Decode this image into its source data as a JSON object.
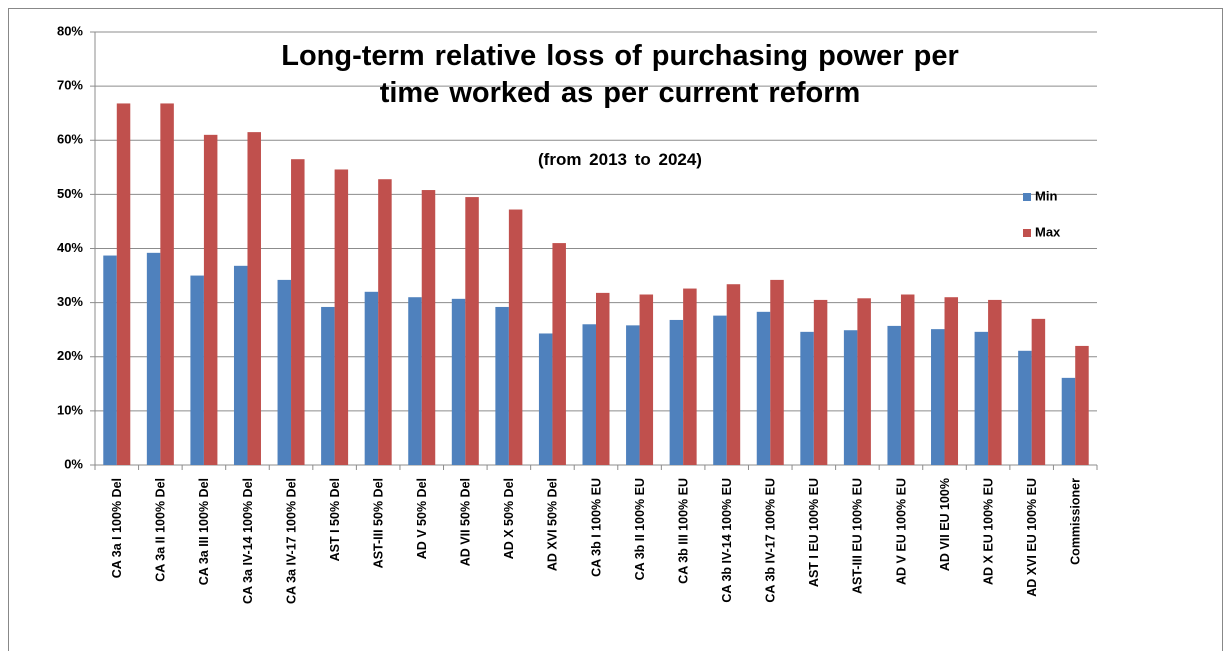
{
  "chart_data": {
    "type": "bar",
    "title": "Long-term relative loss of purchasing power per time worked as per current reform",
    "subtitle": "(from 2013 to 2024)",
    "categories": [
      "CA 3a I 100% Del",
      "CA 3a II 100% Del",
      "CA 3a III 100% Del",
      "CA 3a IV-14 100% Del",
      "CA 3a IV-17 100% Del",
      "AST I 50% Del",
      "AST-III 50% Del",
      "AD V 50% Del",
      "AD VII 50% Del",
      "AD X 50% Del",
      "AD XVI 50% Del",
      "CA 3b I 100% EU",
      "CA 3b II 100% EU",
      "CA 3b III 100% EU",
      "CA 3b IV-14 100% EU",
      "CA 3b IV-17 100% EU",
      "AST I EU 100% EU",
      "AST-III EU 100% EU",
      "AD V EU 100% EU",
      "AD VII EU 100%",
      "AD X EU 100% EU",
      "AD XVI EU 100% EU",
      "Commissioner"
    ],
    "series": [
      {
        "name": "Min",
        "color": "#4f81bd",
        "values": [
          38.7,
          39.2,
          35,
          36.8,
          34.2,
          29.2,
          32,
          31,
          30.7,
          29.2,
          24.3,
          26,
          25.8,
          26.8,
          27.6,
          28.3,
          24.6,
          24.9,
          25.7,
          25.1,
          24.6,
          21.1,
          16.1
        ]
      },
      {
        "name": "Max",
        "color": "#c0504d",
        "values": [
          66.8,
          66.8,
          61,
          61.5,
          56.5,
          54.6,
          52.8,
          50.8,
          49.5,
          47.2,
          41,
          31.8,
          31.5,
          32.6,
          33.4,
          34.2,
          30.5,
          30.8,
          31.5,
          31,
          30.5,
          27,
          22
        ]
      }
    ],
    "ylim": [
      0,
      80
    ],
    "yticks": [
      {
        "value": 0,
        "label": "0%"
      },
      {
        "value": 10,
        "label": "10%"
      },
      {
        "value": 20,
        "label": "20%"
      },
      {
        "value": 30,
        "label": "30%"
      },
      {
        "value": 40,
        "label": "40%"
      },
      {
        "value": 50,
        "label": "50%"
      },
      {
        "value": 60,
        "label": "60%"
      },
      {
        "value": 70,
        "label": "70%"
      },
      {
        "value": 80,
        "label": "80%"
      }
    ],
    "grid": true,
    "legend": "right"
  }
}
